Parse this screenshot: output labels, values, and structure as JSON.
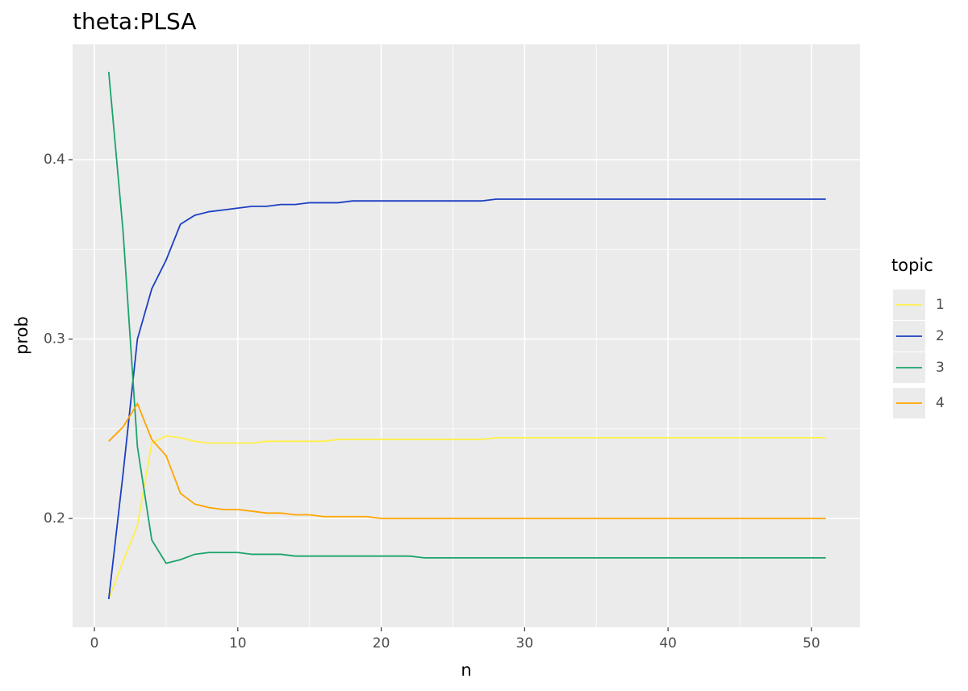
{
  "chart_data": {
    "type": "line",
    "title": "theta:PLSA",
    "xlabel": "n",
    "ylabel": "prob",
    "legend_title": "topic",
    "x": [
      1,
      2,
      3,
      4,
      5,
      6,
      7,
      8,
      9,
      10,
      11,
      12,
      13,
      14,
      15,
      16,
      17,
      18,
      19,
      20,
      21,
      22,
      23,
      24,
      25,
      26,
      27,
      28,
      29,
      30,
      31,
      32,
      33,
      34,
      35,
      36,
      37,
      38,
      39,
      40,
      41,
      42,
      43,
      44,
      45,
      46,
      47,
      48,
      49,
      50,
      51
    ],
    "xlim": [
      -1.52,
      53.38
    ],
    "xticks": [
      0,
      10,
      20,
      30,
      40,
      50
    ],
    "ylim": [
      0.1393,
      0.4643
    ],
    "yticks": [
      0.2,
      0.3,
      0.4
    ],
    "grid": true,
    "legend": "right",
    "series": [
      {
        "name": "1",
        "color": "#fff04a",
        "values": [
          0.155,
          0.176,
          0.196,
          0.242,
          0.246,
          0.245,
          0.243,
          0.242,
          0.242,
          0.242,
          0.242,
          0.243,
          0.243,
          0.243,
          0.243,
          0.243,
          0.244,
          0.244,
          0.244,
          0.244,
          0.244,
          0.244,
          0.244,
          0.244,
          0.244,
          0.244,
          0.244,
          0.245,
          0.245,
          0.245,
          0.245,
          0.245,
          0.245,
          0.245,
          0.245,
          0.245,
          0.245,
          0.245,
          0.245,
          0.245,
          0.245,
          0.245,
          0.245,
          0.245,
          0.245,
          0.245,
          0.245,
          0.245,
          0.245,
          0.245,
          0.245
        ]
      },
      {
        "name": "2",
        "color": "#1c3fc2",
        "values": [
          0.155,
          0.225,
          0.3,
          0.328,
          0.344,
          0.364,
          0.369,
          0.371,
          0.372,
          0.373,
          0.374,
          0.374,
          0.375,
          0.375,
          0.376,
          0.376,
          0.376,
          0.377,
          0.377,
          0.377,
          0.377,
          0.377,
          0.377,
          0.377,
          0.377,
          0.377,
          0.377,
          0.378,
          0.378,
          0.378,
          0.378,
          0.378,
          0.378,
          0.378,
          0.378,
          0.378,
          0.378,
          0.378,
          0.378,
          0.378,
          0.378,
          0.378,
          0.378,
          0.378,
          0.378,
          0.378,
          0.378,
          0.378,
          0.378,
          0.378,
          0.378
        ]
      },
      {
        "name": "3",
        "color": "#1aa36b",
        "values": [
          0.449,
          0.36,
          0.24,
          0.188,
          0.175,
          0.177,
          0.18,
          0.181,
          0.181,
          0.181,
          0.18,
          0.18,
          0.18,
          0.179,
          0.179,
          0.179,
          0.179,
          0.179,
          0.179,
          0.179,
          0.179,
          0.179,
          0.178,
          0.178,
          0.178,
          0.178,
          0.178,
          0.178,
          0.178,
          0.178,
          0.178,
          0.178,
          0.178,
          0.178,
          0.178,
          0.178,
          0.178,
          0.178,
          0.178,
          0.178,
          0.178,
          0.178,
          0.178,
          0.178,
          0.178,
          0.178,
          0.178,
          0.178,
          0.178,
          0.178,
          0.178
        ]
      },
      {
        "name": "4",
        "color": "#ffa500",
        "values": [
          0.243,
          0.251,
          0.264,
          0.244,
          0.235,
          0.214,
          0.208,
          0.206,
          0.205,
          0.205,
          0.204,
          0.203,
          0.203,
          0.202,
          0.202,
          0.201,
          0.201,
          0.201,
          0.201,
          0.2,
          0.2,
          0.2,
          0.2,
          0.2,
          0.2,
          0.2,
          0.2,
          0.2,
          0.2,
          0.2,
          0.2,
          0.2,
          0.2,
          0.2,
          0.2,
          0.2,
          0.2,
          0.2,
          0.2,
          0.2,
          0.2,
          0.2,
          0.2,
          0.2,
          0.2,
          0.2,
          0.2,
          0.2,
          0.2,
          0.2,
          0.2
        ]
      }
    ]
  }
}
